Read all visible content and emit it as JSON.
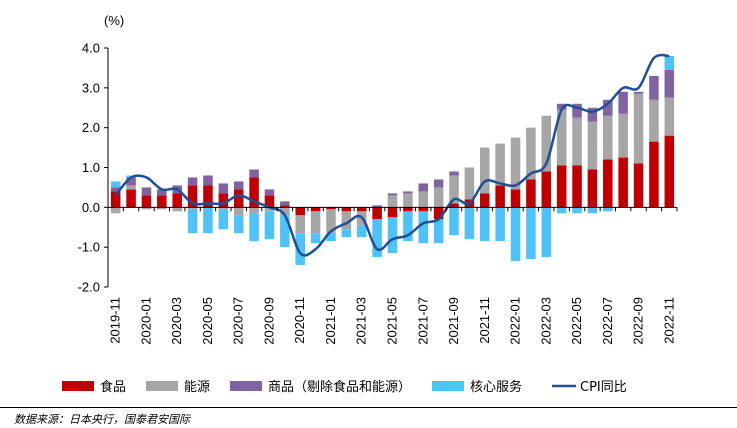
{
  "chart_data": {
    "type": "stacked-bar-line",
    "ylabel": "(%)",
    "ylim": [
      -2.0,
      4.0
    ],
    "yticks": [
      4.0,
      3.0,
      2.0,
      1.0,
      0.0,
      -1.0,
      -2.0
    ],
    "ytick_labels": [
      "4.0",
      "3.0",
      "2.0",
      "1.0",
      "0.0",
      "-1.0",
      "-2.0"
    ],
    "categories": [
      "2019-11",
      "2019-12",
      "2020-01",
      "2020-02",
      "2020-03",
      "2020-04",
      "2020-05",
      "2020-06",
      "2020-07",
      "2020-08",
      "2020-09",
      "2020-10",
      "2020-11",
      "2020-12",
      "2021-01",
      "2021-02",
      "2021-03",
      "2021-04",
      "2021-05",
      "2021-06",
      "2021-07",
      "2021-08",
      "2021-09",
      "2021-10",
      "2021-11",
      "2021-12",
      "2022-01",
      "2022-02",
      "2022-03",
      "2022-04",
      "2022-05",
      "2022-06",
      "2022-07",
      "2022-08",
      "2022-09",
      "2022-10",
      "2022-11"
    ],
    "xtick_labels": [
      "2019-11",
      "2020-01",
      "2020-03",
      "2020-05",
      "2020-07",
      "2020-09",
      "2020-11",
      "2021-01",
      "2021-03",
      "2021-05",
      "2021-07",
      "2021-09",
      "2021-11",
      "2022-01",
      "2022-03",
      "2022-05",
      "2022-07",
      "2022-09",
      "2022-11"
    ],
    "series": [
      {
        "name": "食品",
        "kind": "bar",
        "color": "#c00000",
        "values": [
          0.4,
          0.45,
          0.3,
          0.3,
          0.35,
          0.55,
          0.55,
          0.35,
          0.45,
          0.75,
          0.3,
          0.05,
          -0.2,
          -0.1,
          -0.05,
          -0.1,
          -0.1,
          -0.3,
          -0.25,
          -0.1,
          -0.1,
          -0.3,
          0.1,
          0.2,
          0.35,
          0.55,
          0.45,
          0.7,
          0.9,
          1.05,
          1.05,
          0.95,
          1.2,
          1.25,
          1.1,
          1.65,
          1.8
        ]
      },
      {
        "name": "能源",
        "kind": "bar",
        "color": "#a6a6a6",
        "values": [
          -0.15,
          0.1,
          -0.05,
          -0.05,
          -0.1,
          -0.05,
          0.0,
          -0.05,
          -0.2,
          -0.15,
          -0.1,
          -0.2,
          -0.45,
          -0.55,
          -0.6,
          -0.45,
          -0.35,
          0.0,
          0.3,
          0.35,
          0.4,
          0.5,
          0.7,
          0.8,
          1.15,
          1.05,
          1.3,
          1.3,
          1.4,
          1.4,
          1.2,
          1.2,
          1.1,
          1.1,
          1.75,
          1.05,
          0.95
        ]
      },
      {
        "name": "商品（剔除食品和能源）",
        "kind": "bar",
        "color": "#8064a2",
        "values": [
          0.1,
          0.2,
          0.2,
          0.15,
          0.2,
          0.2,
          0.25,
          0.25,
          0.2,
          0.2,
          0.15,
          0.1,
          0.0,
          0.0,
          0.0,
          0.0,
          0.0,
          0.05,
          0.05,
          0.05,
          0.2,
          0.2,
          0.1,
          0.0,
          0.0,
          0.0,
          0.0,
          0.0,
          0.0,
          0.15,
          0.35,
          0.35,
          0.4,
          0.55,
          0.05,
          0.6,
          0.7
        ]
      },
      {
        "name": "核心服务",
        "kind": "bar",
        "color": "#4fc3f7",
        "values": [
          0.15,
          0.05,
          0.0,
          0.0,
          0.0,
          -0.6,
          -0.65,
          -0.5,
          -0.45,
          -0.7,
          -0.7,
          -0.8,
          -0.8,
          -0.25,
          -0.2,
          -0.2,
          -0.3,
          -0.95,
          -0.9,
          -0.75,
          -0.8,
          -0.6,
          -0.7,
          -0.8,
          -0.85,
          -0.85,
          -1.35,
          -1.3,
          -1.25,
          -0.15,
          -0.15,
          -0.15,
          -0.1,
          0.0,
          0.0,
          0.0,
          0.35
        ]
      },
      {
        "name": "CPI同比",
        "kind": "line",
        "color": "#1f4e9a",
        "values": [
          0.3,
          0.75,
          0.75,
          0.45,
          0.45,
          0.1,
          0.1,
          0.1,
          0.3,
          0.15,
          0.0,
          -0.2,
          -1.15,
          -1.05,
          -0.6,
          -0.4,
          -0.25,
          -1.05,
          -0.8,
          -0.7,
          -0.4,
          -0.3,
          0.2,
          0.1,
          0.65,
          0.6,
          0.55,
          0.85,
          1.1,
          2.45,
          2.5,
          2.4,
          2.6,
          3.0,
          3.0,
          3.75,
          3.8
        ]
      }
    ]
  },
  "legend": [
    {
      "label": "食品",
      "color": "#c00000",
      "icon": "bar-swatch"
    },
    {
      "label": "能源",
      "color": "#a6a6a6",
      "icon": "bar-swatch"
    },
    {
      "label": "商品（剔除食品和能源）",
      "color": "#8064a2",
      "icon": "bar-swatch"
    },
    {
      "label": "核心服务",
      "color": "#4fc3f7",
      "icon": "bar-swatch"
    },
    {
      "label": "CPI同比",
      "color": "#1f4e9a",
      "icon": "line-swatch"
    }
  ],
  "source": "数据来源：日本央行，国泰君安国际"
}
